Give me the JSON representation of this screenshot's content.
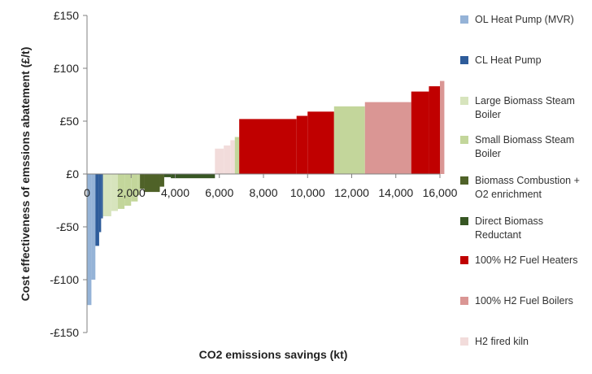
{
  "chart_data": {
    "type": "bar",
    "xlabel": "CO2 emissions savings (kt)",
    "ylabel": "Cost effectiveness of emssions abatement (£/t)",
    "xlim": [
      0,
      16000
    ],
    "ylim": [
      -150,
      150
    ],
    "x_ticks": [
      0,
      2000,
      4000,
      6000,
      8000,
      10000,
      12000,
      14000,
      16000
    ],
    "x_tick_labels": [
      "0",
      "2,000",
      "4,000",
      "6,000",
      "8,000",
      "10,000",
      "12,000",
      "14,000",
      "16,000"
    ],
    "y_ticks": [
      -150,
      -100,
      -50,
      0,
      50,
      100,
      150
    ],
    "y_tick_labels": [
      "-£150",
      "-£100",
      "-£50",
      "£0",
      "£50",
      "£100",
      "£150"
    ],
    "grid": false,
    "legend_position": "right",
    "series": [
      {
        "name": "OL Heat Pump (MVR)",
        "color": "#95b3d7",
        "segments": [
          [
            0,
            200,
            -124
          ],
          [
            200,
            380,
            -100
          ]
        ]
      },
      {
        "name": "CL Heat Pump",
        "color": "#2e5c9a",
        "segments": [
          [
            380,
            550,
            -68
          ],
          [
            550,
            640,
            -55
          ],
          [
            640,
            720,
            -42
          ]
        ]
      },
      {
        "name": "Large Biomass Steam Boiler",
        "color": "#d7e4bd",
        "segments": [
          [
            720,
            1100,
            -40
          ],
          [
            1100,
            1400,
            -35
          ]
        ]
      },
      {
        "name": "Small Biomass Steam Boiler",
        "color": "#c3d69b",
        "segments": [
          [
            1400,
            1700,
            -33
          ],
          [
            1700,
            2000,
            -30
          ],
          [
            2000,
            2300,
            -26
          ],
          [
            2300,
            2400,
            -20
          ]
        ]
      },
      {
        "name": "Biomass Combustion + O2 enrichment",
        "color": "#4f6228",
        "segments": [
          [
            2400,
            2600,
            -14
          ],
          [
            2600,
            3300,
            -17
          ],
          [
            3300,
            3500,
            -12
          ]
        ]
      },
      {
        "name": "Direct Biomass Reductant",
        "color": "#375623",
        "segments": [
          [
            3500,
            3800,
            -3
          ],
          [
            3800,
            5800,
            -4
          ]
        ]
      },
      {
        "name": "H2 fired kiln",
        "color": "#f2dcdb",
        "segments": [
          [
            5800,
            6200,
            24
          ],
          [
            6200,
            6500,
            27
          ],
          [
            6500,
            6700,
            32
          ]
        ]
      },
      {
        "name": "Small Biomass Steam Boiler",
        "color": "#c3d69b",
        "segments": [
          [
            6700,
            6900,
            35
          ]
        ]
      },
      {
        "name": "100% H2 Fuel Heaters",
        "color": "#c00000",
        "segments": [
          [
            6900,
            9500,
            52
          ],
          [
            9500,
            10000,
            55
          ],
          [
            10000,
            11200,
            59
          ]
        ]
      },
      {
        "name": "Small Biomass Steam Boiler",
        "color": "#c3d69b",
        "segments": [
          [
            11200,
            12600,
            64
          ]
        ]
      },
      {
        "name": "100% H2 Fuel Boilers",
        "color": "#da9694",
        "segments": [
          [
            12600,
            14700,
            68
          ]
        ]
      },
      {
        "name": "100% H2 Fuel Heaters",
        "color": "#c00000",
        "segments": [
          [
            14700,
            15500,
            78
          ],
          [
            15500,
            16000,
            83
          ]
        ]
      },
      {
        "name": "100% H2 Fuel Boilers",
        "color": "#da9694",
        "segments": [
          [
            16000,
            16200,
            88
          ]
        ]
      }
    ]
  },
  "legend": {
    "items": [
      {
        "label": "OL Heat Pump (MVR)",
        "color": "#95b3d7"
      },
      {
        "label": "CL Heat Pump",
        "color": "#2e5c9a"
      },
      {
        "label": "Large Biomass Steam Boiler",
        "color": "#d7e4bd"
      },
      {
        "label": "Small Biomass Steam Boiler",
        "color": "#c3d69b"
      },
      {
        "label": "Biomass Combustion + O2 enrichment",
        "color": "#4f6228"
      },
      {
        "label": "Direct Biomass Reductant",
        "color": "#375623"
      },
      {
        "label": "100% H2 Fuel Heaters",
        "color": "#c00000"
      },
      {
        "label": "100% H2 Fuel Boilers",
        "color": "#da9694"
      },
      {
        "label": "H2 fired kiln",
        "color": "#f2dcdb"
      }
    ]
  }
}
